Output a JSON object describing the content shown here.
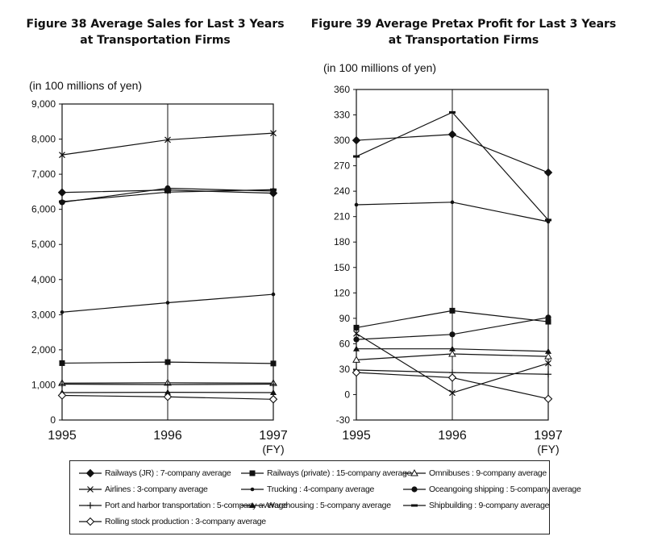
{
  "chart_data": [
    {
      "type": "line",
      "title_lines": [
        "Figure 38 Average Sales for Last 3 Years",
        "at Transportation Firms"
      ],
      "unit": "(in 100 millions of yen)",
      "x": [
        "1995",
        "1996",
        "1997"
      ],
      "x_suffix": "(FY)",
      "ylim": [
        0,
        9000
      ],
      "yticks": [
        0,
        1000,
        2000,
        3000,
        4000,
        5000,
        6000,
        7000,
        8000,
        9000
      ],
      "ytick_labels": [
        "0",
        "1,000",
        "2,000",
        "3,000",
        "4,000",
        "5,000",
        "6,000",
        "7,000",
        "8,000",
        "9,000"
      ],
      "series": [
        {
          "key": "railways_jr",
          "values": [
            6480,
            6550,
            6460
          ]
        },
        {
          "key": "railways_private",
          "values": [
            1620,
            1650,
            1610
          ]
        },
        {
          "key": "omnibuses",
          "values": [
            1050,
            1060,
            1050
          ]
        },
        {
          "key": "airlines",
          "values": [
            7550,
            7980,
            8170
          ]
        },
        {
          "key": "trucking",
          "values": [
            3070,
            3340,
            3580
          ]
        },
        {
          "key": "oceangoing",
          "values": [
            6200,
            6600,
            6520
          ]
        },
        {
          "key": "port",
          "values": [
            1020,
            1010,
            1020
          ]
        },
        {
          "key": "warehousing",
          "values": [
            780,
            790,
            780
          ]
        },
        {
          "key": "shipbuilding",
          "values": [
            6220,
            6490,
            6560
          ]
        },
        {
          "key": "rolling_stock",
          "values": [
            700,
            660,
            590
          ]
        }
      ]
    },
    {
      "type": "line",
      "title_lines": [
        "Figure 39 Average Pretax Profit for Last 3 Years",
        "at Transportation Firms"
      ],
      "unit": "(in 100 millions of yen)",
      "x": [
        "1995",
        "1996",
        "1997"
      ],
      "x_suffix": "(FY)",
      "ylim": [
        -30,
        360
      ],
      "yticks": [
        -30,
        0,
        30,
        60,
        90,
        120,
        150,
        180,
        210,
        240,
        270,
        300,
        330,
        360
      ],
      "ytick_labels": [
        "-30",
        "0",
        "30",
        "60",
        "90",
        "120",
        "150",
        "180",
        "210",
        "240",
        "270",
        "300",
        "330",
        "360"
      ],
      "series": [
        {
          "key": "railways_jr",
          "values": [
            300,
            307,
            262
          ]
        },
        {
          "key": "railways_private",
          "values": [
            79,
            99,
            86
          ]
        },
        {
          "key": "omnibuses",
          "values": [
            41,
            48,
            45
          ]
        },
        {
          "key": "airlines",
          "values": [
            72,
            2,
            37
          ]
        },
        {
          "key": "trucking",
          "values": [
            224,
            227,
            204
          ]
        },
        {
          "key": "oceangoing",
          "values": [
            65,
            71,
            91
          ]
        },
        {
          "key": "port",
          "values": [
            29,
            26,
            24
          ]
        },
        {
          "key": "warehousing",
          "values": [
            54,
            54,
            51
          ]
        },
        {
          "key": "shipbuilding",
          "values": [
            281,
            333,
            206
          ]
        },
        {
          "key": "rolling_stock",
          "values": [
            26,
            20,
            -5
          ]
        }
      ]
    }
  ],
  "legend": [
    {
      "key": "railways_jr",
      "label": "Railways (JR) : 7-company average",
      "marker": "diamond-filled"
    },
    {
      "key": "railways_private",
      "label": "Railways (private) : 15-company average",
      "marker": "square-filled"
    },
    {
      "key": "omnibuses",
      "label": "Omnibuses : 9-company average",
      "marker": "triangle-open"
    },
    {
      "key": "airlines",
      "label": "Airlines : 3-company average",
      "marker": "x-cross"
    },
    {
      "key": "trucking",
      "label": "Trucking : 4-company average",
      "marker": "dot-small"
    },
    {
      "key": "oceangoing",
      "label": "Oceangoing shipping : 5-company average",
      "marker": "circle-filled"
    },
    {
      "key": "port",
      "label": "Port and harbor transportation : 5-company average",
      "marker": "plus"
    },
    {
      "key": "warehousing",
      "label": "Warehousing : 5-company average",
      "marker": "triangle-filled"
    },
    {
      "key": "shipbuilding",
      "label": "Shipbuilding : 9-company average",
      "marker": "dash"
    },
    {
      "key": "rolling_stock",
      "label": "Rolling stock production : 3-company average",
      "marker": "diamond-open"
    }
  ],
  "colors": {
    "line": "#111111",
    "background": "#ffffff"
  }
}
